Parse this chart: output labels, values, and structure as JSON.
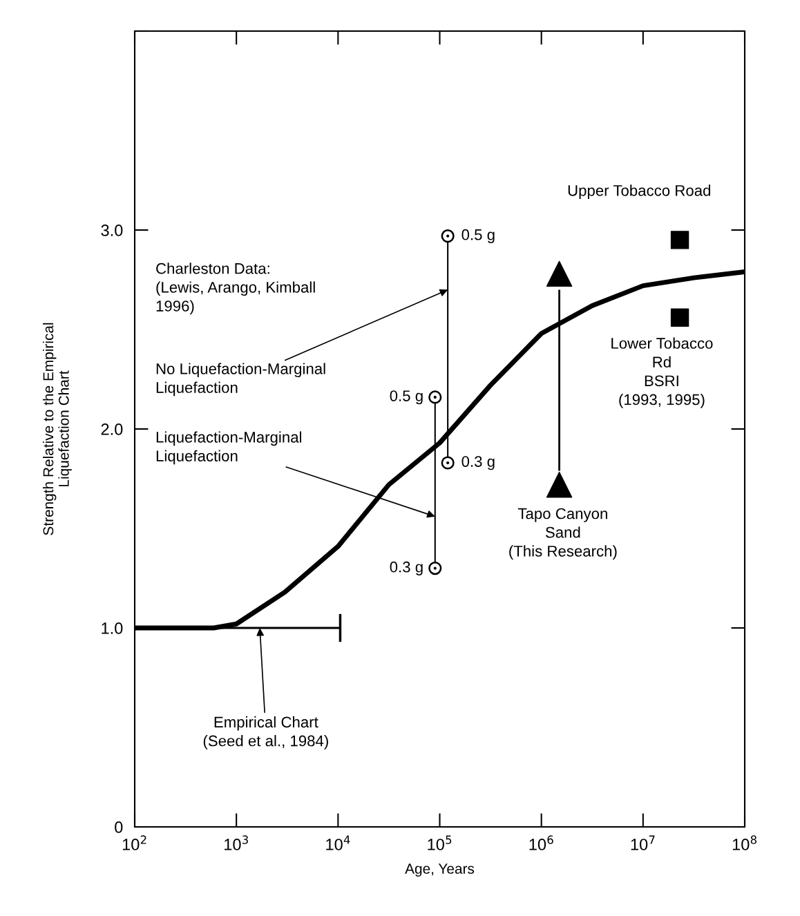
{
  "chart_data": {
    "type": "line",
    "xlabel": "Age, Years",
    "ylabel": "Strength Relative to the Empirical\nLiquefaction Chart",
    "log": "x",
    "xlim": [
      100,
      100000000
    ],
    "xticks": [
      {
        "value": 100,
        "label": "10$^{2}$"
      },
      {
        "value": 1000,
        "label": "10$^{3}$"
      },
      {
        "value": 10000,
        "label": "10$^{4}$"
      },
      {
        "value": 100000,
        "label": "10$^{5}$"
      },
      {
        "value": 1000000,
        "label": "10$^{6}$"
      },
      {
        "value": 10000000,
        "label": "10$^{7}$"
      },
      {
        "value": 100000000,
        "label": "10$^{8}$"
      }
    ],
    "ylim": [
      0,
      4
    ],
    "yticks": [
      0,
      {
        "value": 1,
        "label": "1.0"
      },
      {
        "value": 2,
        "label": "2.0"
      },
      {
        "value": 3,
        "label": "3.0"
      },
      {
        "value": 4,
        "label": null
      }
    ],
    "grid": false,
    "series": [
      {
        "color": "#000000",
        "marker": "none",
        "x": [
          100,
          600,
          1000,
          3000,
          10000,
          31600,
          100000,
          316000,
          1000000,
          3160000,
          10000000,
          31600000,
          100000000
        ],
        "values": [
          1.0,
          1.0,
          1.02,
          1.18,
          1.41,
          1.72,
          1.93,
          2.22,
          2.48,
          2.62,
          2.72,
          2.76,
          2.79
        ]
      },
      {
        "type": "line",
        "color": "#000000",
        "marker": "none",
        "x": [
          100,
          10500
        ],
        "values": [
          1.0,
          1.0
        ],
        "errors": [
          null,
          [
            0.93,
            1.07
          ]
        ]
      },
      {
        "type": "line",
        "color": "#000000",
        "marker": "circle",
        "x": [
          90000,
          90000
        ],
        "values": [
          2.16,
          1.3
        ]
      },
      {
        "type": "line",
        "color": "#000000",
        "marker": "circle",
        "x": [
          120000,
          120000
        ],
        "values": [
          2.97,
          1.83
        ]
      },
      {
        "type": "line",
        "color": "#000000",
        "marker": "none",
        "x": [
          1500000,
          1500000
        ],
        "values": [
          2.7,
          1.79
        ]
      },
      {
        "type": "scatter",
        "color": "#000000",
        "marker": "triangle",
        "x": [
          1500000,
          1500000
        ],
        "values": [
          2.78,
          1.72
        ]
      },
      {
        "type": "scatter",
        "color": "#000000",
        "marker": "square",
        "x": [
          23000000,
          23000000
        ],
        "values": [
          2.95,
          2.56
        ]
      }
    ],
    "annotations": [
      "Charleston Data:\n(Lewis, Arango, Kimball\n1996)",
      {
        "text": "No Liquefaction-Marginal\nLiquefaction",
        "x": 120000,
        "y": 2.7
      },
      {
        "text": "Liquefaction-Marginal\nLiquefaction",
        "x": 90000,
        "y": 1.56
      },
      {
        "text": "Empirical Chart\n(Seed et al., 1984)",
        "x": 1700,
        "y": 1.0
      },
      {
        "text": "Upper Tobacco Road",
        "x": 23000000,
        "y": 2.95
      },
      {
        "text": "Lower Tobacco\nRd\nBSRI\n(1993, 1995)",
        "x": 23000000,
        "y": 2.56
      },
      {
        "text": "Tapo Canyon\nSand\n(This Research)",
        "x": 1500000,
        "y": 1.72
      },
      {
        "text": "0.5 g",
        "x": 90000,
        "y": 2.16
      },
      {
        "text": "0.3 g",
        "x": 90000,
        "y": 1.3
      },
      {
        "text": "0.5 g",
        "x": 120000,
        "y": 2.97
      },
      {
        "text": "0.3 g",
        "x": 120000,
        "y": 1.83
      }
    ]
  }
}
